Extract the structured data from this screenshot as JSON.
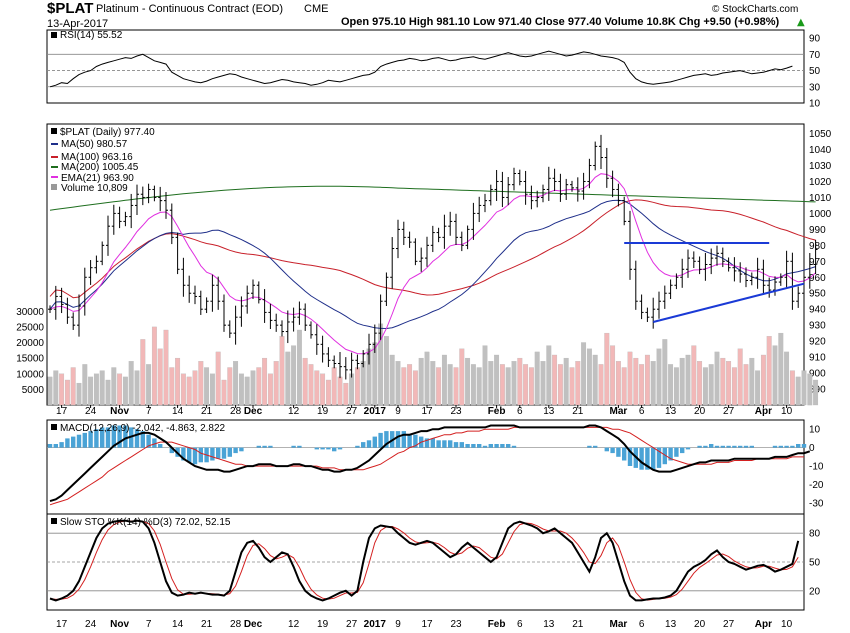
{
  "header": {
    "symbol": "$PLAT",
    "name": "Platinum - Continuous Contract (EOD)",
    "exchange": "CME",
    "date": "13-Apr-2017",
    "quote_text": "Open 975.10  High 981.10  Low 971.40  Close 977.40  Volume 10.8K  Chg +9.50 (+0.98%)",
    "up_arrow": "▲",
    "copyright": "© StockCharts.com"
  },
  "x_ticks": [
    {
      "i": 2,
      "label": "17"
    },
    {
      "i": 7,
      "label": "24"
    },
    {
      "i": 12,
      "label": "Nov"
    },
    {
      "i": 17,
      "label": "7"
    },
    {
      "i": 22,
      "label": "14"
    },
    {
      "i": 27,
      "label": "21"
    },
    {
      "i": 32,
      "label": "28"
    },
    {
      "i": 35,
      "label": "Dec"
    },
    {
      "i": 42,
      "label": "12"
    },
    {
      "i": 47,
      "label": "19"
    },
    {
      "i": 52,
      "label": "27"
    },
    {
      "i": 56,
      "label": "2017"
    },
    {
      "i": 60,
      "label": "9"
    },
    {
      "i": 65,
      "label": "17"
    },
    {
      "i": 70,
      "label": "23"
    },
    {
      "i": 77,
      "label": "Feb"
    },
    {
      "i": 81,
      "label": "6"
    },
    {
      "i": 86,
      "label": "13"
    },
    {
      "i": 91,
      "label": "21"
    },
    {
      "i": 98,
      "label": "Mar"
    },
    {
      "i": 102,
      "label": "6"
    },
    {
      "i": 107,
      "label": "13"
    },
    {
      "i": 112,
      "label": "20"
    },
    {
      "i": 117,
      "label": "27"
    },
    {
      "i": 123,
      "label": "Apr"
    },
    {
      "i": 127,
      "label": "10"
    }
  ],
  "chart_data": [
    {
      "type": "line",
      "panel": "rsi",
      "legend": "RSI(14) 55.52",
      "ylim": [
        10,
        100
      ],
      "y_ticks": [
        90,
        70,
        50,
        30,
        10
      ],
      "ref_lines": [
        70,
        50,
        30
      ],
      "values": [
        30,
        32,
        35,
        34,
        40,
        45,
        48,
        50,
        55,
        58,
        60,
        62,
        64,
        66,
        65,
        68,
        70,
        66,
        62,
        60,
        58,
        48,
        44,
        40,
        38,
        36,
        35,
        37,
        40,
        42,
        44,
        46,
        45,
        42,
        40,
        38,
        36,
        34,
        35,
        37,
        39,
        38,
        36,
        35,
        34,
        32,
        33,
        35,
        38,
        37,
        36,
        38,
        40,
        42,
        44,
        45,
        48,
        55,
        58,
        60,
        62,
        63,
        65,
        64,
        62,
        63,
        65,
        66,
        64,
        62,
        63,
        65,
        66,
        67,
        65,
        64,
        66,
        68,
        70,
        72,
        70,
        68,
        67,
        68,
        70,
        72,
        74,
        72,
        70,
        68,
        69,
        71,
        73,
        72,
        70,
        68,
        67,
        66,
        64,
        60,
        48,
        40,
        36,
        34,
        33,
        34,
        35,
        36,
        38,
        40,
        42,
        44,
        45,
        46,
        44,
        45,
        47,
        48,
        49,
        50,
        48,
        46,
        47,
        48,
        50,
        52,
        51,
        53,
        55.5
      ]
    },
    {
      "type": "line",
      "panel": "price",
      "legend": "$PLAT (Daily) 977.40",
      "ylim": [
        880,
        1056
      ],
      "y_ticks": [
        1050,
        1040,
        1030,
        1020,
        1010,
        1000,
        990,
        980,
        970,
        960,
        950,
        940,
        930,
        920,
        910,
        900,
        890
      ],
      "volume_ticks": [
        30000,
        25000,
        20000,
        15000,
        10000,
        5000
      ],
      "series": [
        {
          "name": "MA(50) 980.57",
          "color": "#1f2f8a"
        },
        {
          "name": "MA(100) 963.16",
          "color": "#c8202a"
        },
        {
          "name": "MA(200) 1005.45",
          "color": "#1e6e1e"
        },
        {
          "name": "EMA(21) 963.90",
          "color": "#e030e0"
        },
        {
          "name": "Volume 10,809",
          "color": "#999999"
        }
      ],
      "close": [
        940,
        948,
        943,
        935,
        930,
        942,
        960,
        966,
        970,
        980,
        992,
        1000,
        995,
        998,
        1005,
        1012,
        1010,
        1015,
        1010,
        1008,
        1002,
        985,
        965,
        955,
        950,
        948,
        940,
        945,
        955,
        945,
        930,
        925,
        935,
        942,
        950,
        955,
        946,
        938,
        933,
        930,
        926,
        932,
        935,
        940,
        930,
        924,
        918,
        912,
        908,
        906,
        904,
        902,
        908,
        906,
        912,
        918,
        925,
        945,
        960,
        978,
        990,
        985,
        982,
        970,
        972,
        980,
        988,
        985,
        992,
        995,
        985,
        980,
        990,
        1000,
        1005,
        1008,
        1015,
        1020,
        1010,
        1018,
        1025,
        1020,
        1012,
        1008,
        1010,
        1015,
        1022,
        1020,
        1012,
        1018,
        1016,
        1014,
        1020,
        1030,
        1042,
        1035,
        1022,
        1015,
        1008,
        995,
        965,
        945,
        938,
        935,
        940,
        945,
        950,
        955,
        960,
        965,
        972,
        970,
        965,
        968,
        972,
        975,
        970,
        966,
        964,
        962,
        958,
        960,
        965,
        955,
        952,
        957,
        960,
        970,
        945,
        950,
        960,
        968,
        977.4
      ]
    },
    {
      "type": "bar",
      "panel": "macd",
      "legend": "MACD(12,26,9) -2.042, -4.863, 2.822",
      "ylim": [
        -36,
        15
      ],
      "y_ticks": [
        10,
        0,
        -10,
        -20,
        -30
      ],
      "macd": [
        -29,
        -28,
        -26,
        -23,
        -20,
        -17,
        -14,
        -11,
        -8,
        -5,
        -2,
        1,
        3,
        5,
        6,
        7,
        8,
        8,
        7,
        5,
        3,
        0,
        -3,
        -6,
        -8,
        -10,
        -11,
        -12,
        -12,
        -12,
        -13,
        -13,
        -12,
        -11,
        -10,
        -10,
        -9,
        -9,
        -9,
        -10,
        -10,
        -10,
        -9,
        -9,
        -10,
        -10,
        -11,
        -12,
        -12,
        -13,
        -13,
        -12,
        -12,
        -11,
        -9,
        -7,
        -4,
        -1,
        2,
        4,
        6,
        7,
        7,
        8,
        9,
        9,
        10,
        10,
        11,
        11,
        11,
        11,
        11,
        11,
        11,
        11,
        12,
        12,
        12,
        12,
        12,
        11,
        11,
        11,
        11,
        11,
        11,
        11,
        11,
        11,
        11,
        11,
        11,
        12,
        12,
        11,
        9,
        7,
        5,
        2,
        -2,
        -5,
        -8,
        -10,
        -12,
        -13,
        -13,
        -13,
        -12,
        -11,
        -10,
        -9,
        -8,
        -8,
        -7,
        -7,
        -7,
        -7,
        -6,
        -6,
        -6,
        -6,
        -6,
        -6,
        -6,
        -5,
        -5,
        -5,
        -4,
        -3,
        -3,
        -2
      ],
      "signal": [
        -31,
        -30,
        -29,
        -28,
        -26,
        -24,
        -22,
        -20,
        -18,
        -16,
        -13,
        -11,
        -9,
        -7,
        -5,
        -3,
        -1,
        1,
        2,
        3,
        3,
        3,
        2,
        1,
        0,
        -1,
        -3,
        -4,
        -5,
        -6,
        -7,
        -8,
        -9,
        -9,
        -10,
        -10,
        -10,
        -10,
        -10,
        -10,
        -10,
        -10,
        -10,
        -10,
        -10,
        -10,
        -10,
        -11,
        -11,
        -11,
        -12,
        -12,
        -12,
        -12,
        -12,
        -11,
        -10,
        -9,
        -7,
        -5,
        -3,
        -2,
        0,
        1,
        3,
        4,
        5,
        6,
        7,
        7,
        8,
        8,
        9,
        9,
        9,
        10,
        10,
        10,
        10,
        10,
        11,
        11,
        11,
        11,
        11,
        11,
        11,
        11,
        11,
        11,
        11,
        11,
        11,
        11,
        11,
        11,
        11,
        10,
        10,
        9,
        8,
        6,
        4,
        2,
        0,
        -2,
        -4,
        -6,
        -7,
        -8,
        -9,
        -9,
        -9,
        -9,
        -9,
        -8,
        -8,
        -8,
        -7,
        -7,
        -7,
        -7,
        -6,
        -6,
        -6,
        -6,
        -6,
        -6,
        -5,
        -5,
        -5
      ]
    },
    {
      "type": "line",
      "panel": "sto",
      "legend": "Slow STO %K(14) %D(3) 72.02, 52.15",
      "ylim": [
        0,
        100
      ],
      "y_ticks": [
        80,
        50,
        20
      ],
      "ref_lines": [
        80,
        50,
        20
      ],
      "k": [
        12,
        10,
        12,
        15,
        20,
        30,
        45,
        60,
        75,
        85,
        90,
        92,
        93,
        93,
        92,
        93,
        92,
        85,
        70,
        50,
        30,
        18,
        15,
        16,
        18,
        17,
        18,
        17,
        16,
        16,
        15,
        20,
        40,
        60,
        70,
        72,
        65,
        55,
        50,
        55,
        60,
        58,
        45,
        30,
        20,
        15,
        12,
        10,
        12,
        15,
        18,
        20,
        15,
        20,
        50,
        75,
        85,
        88,
        87,
        86,
        80,
        75,
        70,
        68,
        70,
        72,
        70,
        65,
        60,
        55,
        58,
        65,
        70,
        65,
        60,
        55,
        50,
        55,
        70,
        85,
        90,
        92,
        90,
        88,
        85,
        80,
        82,
        85,
        80,
        75,
        70,
        60,
        50,
        40,
        55,
        75,
        80,
        70,
        50,
        30,
        15,
        10,
        10,
        11,
        12,
        12,
        13,
        15,
        20,
        30,
        40,
        45,
        48,
        52,
        58,
        62,
        55,
        50,
        48,
        45,
        42,
        44,
        46,
        47,
        44,
        40,
        42,
        45,
        48,
        72
      ]
    }
  ]
}
